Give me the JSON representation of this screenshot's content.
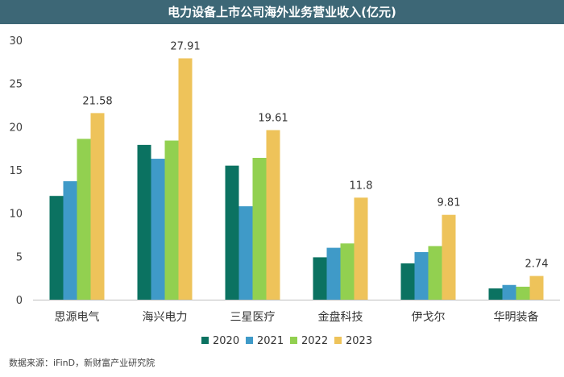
{
  "chart_data": {
    "type": "bar",
    "title": "电力设备上市公司海外业务营业收入(亿元)",
    "categories": [
      "思源电气",
      "海兴电力",
      "三星医疗",
      "金盘科技",
      "伊戈尔",
      "华明装备"
    ],
    "series": [
      {
        "name": "2020",
        "color": "#0b7261",
        "values": [
          12.0,
          17.9,
          15.5,
          4.9,
          4.2,
          1.3
        ]
      },
      {
        "name": "2021",
        "color": "#3f9ac8",
        "values": [
          13.7,
          16.3,
          10.8,
          6.0,
          5.5,
          1.7
        ]
      },
      {
        "name": "2022",
        "color": "#92d050",
        "values": [
          18.6,
          18.4,
          16.4,
          6.5,
          6.2,
          1.5
        ]
      },
      {
        "name": "2023",
        "color": "#eec35a",
        "values": [
          21.58,
          27.91,
          19.61,
          11.8,
          9.81,
          2.74
        ]
      }
    ],
    "data_labels": [
      "21.58",
      "27.91",
      "19.61",
      "11.8",
      "9.81",
      "2.74"
    ],
    "yticks": [
      "0",
      "5",
      "10",
      "15",
      "20",
      "25",
      "30"
    ],
    "ylim": [
      0,
      30
    ],
    "xlabel": "",
    "ylabel": "",
    "legend_position": "bottom",
    "grid": false
  },
  "source_note": "数据来源：iFinD，新财富产业研究院"
}
